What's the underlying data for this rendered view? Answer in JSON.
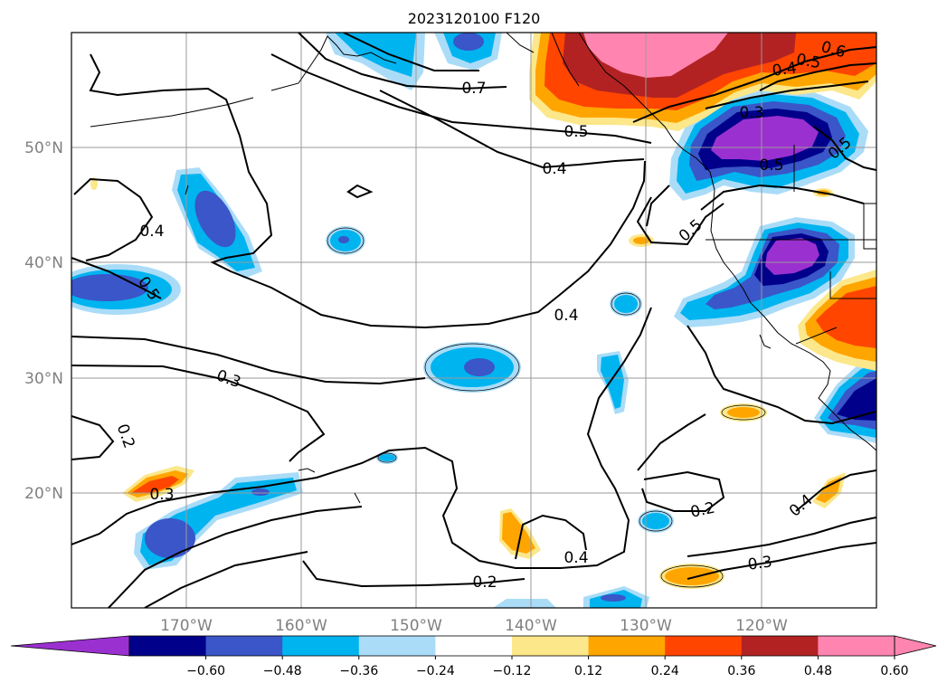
{
  "title": "2023120100 F120",
  "lat_labels": [
    "50°N",
    "40°N",
    "30°N",
    "20°N"
  ],
  "lon_labels": [
    "170°W",
    "160°W",
    "150°W",
    "140°W",
    "130°W",
    "120°W"
  ],
  "contour_labels": [
    "0.7",
    "0.5",
    "0.4",
    "0.3",
    "0.2",
    "0.5",
    "0.4",
    "0.5",
    "0.6",
    "0.5",
    "0.4",
    "0.3",
    "0.5",
    "0.4",
    "0.2",
    "0.4",
    "0.2",
    "0.3",
    "0.3",
    "0.4",
    "0.5"
  ],
  "colorbar": {
    "ticks": [
      "−0.60",
      "−0.48",
      "−0.36",
      "−0.24",
      "−0.12",
      "0.12",
      "0.24",
      "0.36",
      "0.48",
      "0.60"
    ],
    "colors": [
      "#9b30d0",
      "#00008b",
      "#3a56c8",
      "#00b4f0",
      "#aadcf8",
      "#ffffff",
      "#fce78a",
      "#ffa500",
      "#ff4500",
      "#b22222",
      "#ff85b0",
      "#ff85b0"
    ],
    "under_color": "#9b30d0",
    "over_color": "#ff85b0"
  }
}
